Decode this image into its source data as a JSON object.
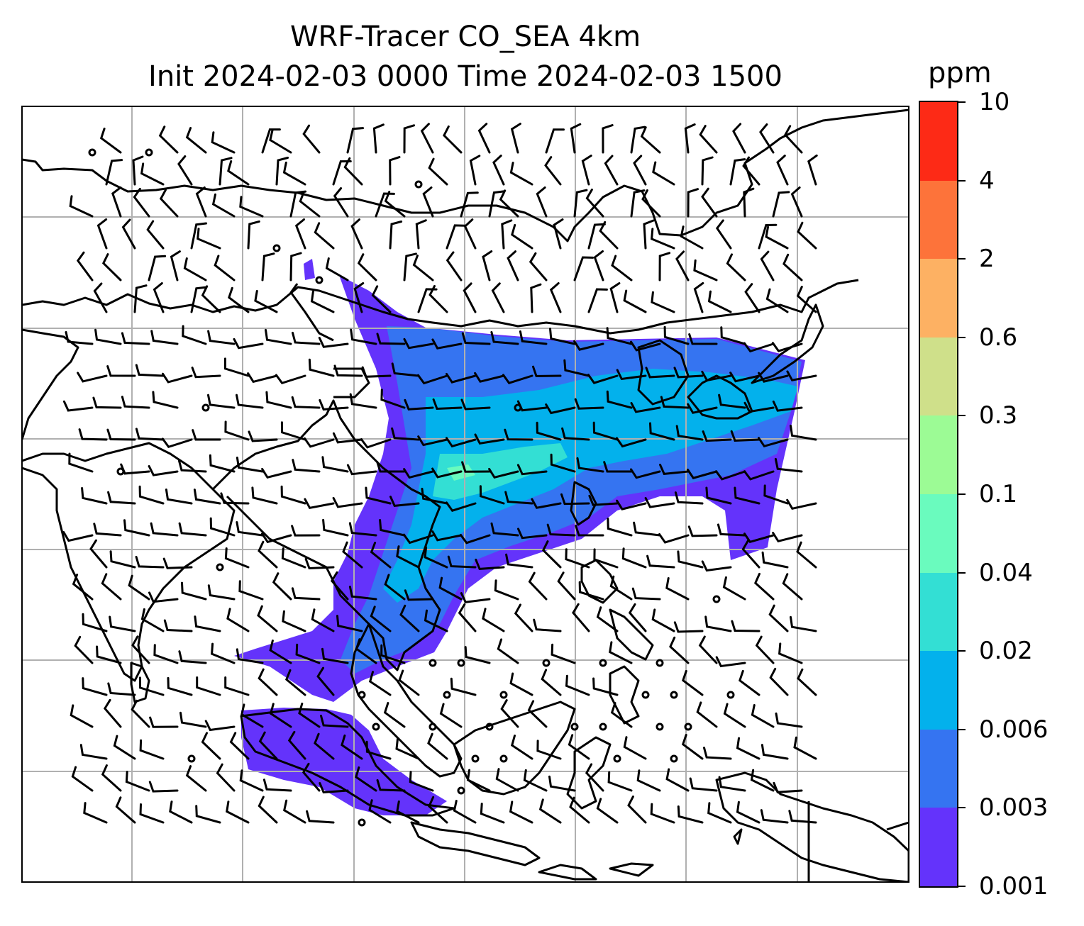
{
  "title_line1": "WRF-Tracer CO_SEA 4km",
  "title_line2": "Init 2024-02-03 0000 Time 2024-02-03 1500",
  "colorbar": {
    "unit": "ppm",
    "levels": [
      "0.001",
      "0.003",
      "0.006",
      "0.02",
      "0.04",
      "0.1",
      "0.3",
      "0.6",
      "2",
      "4",
      "10"
    ],
    "colors": [
      "#6433fb",
      "#3574f1",
      "#03b1ec",
      "#33dfd4",
      "#6afbbe",
      "#9cfb95",
      "#cfe08a",
      "#fdb163",
      "#fd733a",
      "#fd2a16"
    ]
  },
  "map": {
    "graticule": "on",
    "coastlines": "on",
    "tracer_field": "CO_SEA",
    "wind": "barbs"
  }
}
